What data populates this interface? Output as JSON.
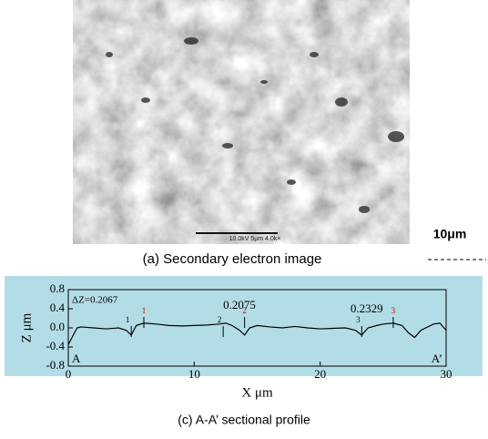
{
  "image": {
    "scale_text": "10.0kV   5μm   4.0k×",
    "caption": "(a) Secondary electron image"
  },
  "scale_label": "10μm",
  "chart_data": {
    "type": "line",
    "xlabel": "X μm",
    "ylabel": "Z μm",
    "caption": "(c) A-A’ sectional profile",
    "xlim": [
      0,
      30
    ],
    "ylim": [
      -0.8,
      0.8
    ],
    "xticks": [
      0,
      10,
      20,
      30
    ],
    "yticks": [
      -0.8,
      -0.4,
      {
        "value": 0,
        "label": "0.0"
      },
      0.4,
      0.8
    ],
    "x": [
      0,
      0.3,
      0.7,
      1,
      2,
      3,
      4,
      4.6,
      5,
      5.4,
      6,
      7,
      8,
      9,
      10,
      11,
      12,
      12.5,
      13,
      13.6,
      14,
      14.4,
      15,
      16,
      17,
      18,
      19,
      20,
      21,
      22,
      22.8,
      23.3,
      23.8,
      24.5,
      25,
      25.8,
      26.5,
      27,
      27.5,
      28,
      29,
      29.5,
      30
    ],
    "series": [
      {
        "color": "#000000",
        "values": [
          -0.35,
          -0.2,
          0.0,
          0.02,
          0.0,
          -0.02,
          0.0,
          -0.05,
          -0.15,
          0.05,
          0.1,
          0.08,
          0.05,
          0.04,
          0.05,
          0.06,
          0.08,
          0.1,
          0.05,
          -0.05,
          -0.15,
          0.0,
          0.05,
          0.02,
          0.0,
          0.03,
          0.0,
          -0.02,
          -0.01,
          0.0,
          -0.05,
          -0.15,
          0.0,
          0.05,
          0.08,
          0.1,
          0.05,
          -0.1,
          -0.2,
          -0.05,
          0.08,
          0.1,
          -0.05
        ]
      }
    ],
    "markers": [
      {
        "label": "1",
        "x": 5,
        "color": "#000000"
      },
      {
        "label": "1",
        "x": 6,
        "color": "#cc0000"
      },
      {
        "label": "2",
        "x": 12.3,
        "color": "#000000"
      },
      {
        "label": "2",
        "x": 14,
        "color": "#cc0000"
      },
      {
        "label": "3",
        "x": 23.3,
        "color": "#000000"
      },
      {
        "label": "3",
        "x": 25.8,
        "color": "#cc0000"
      }
    ],
    "annotations": [
      "ΔZ=0.2067",
      "0.2075",
      "0.2329"
    ],
    "section_labels": [
      "A",
      "A’"
    ]
  }
}
